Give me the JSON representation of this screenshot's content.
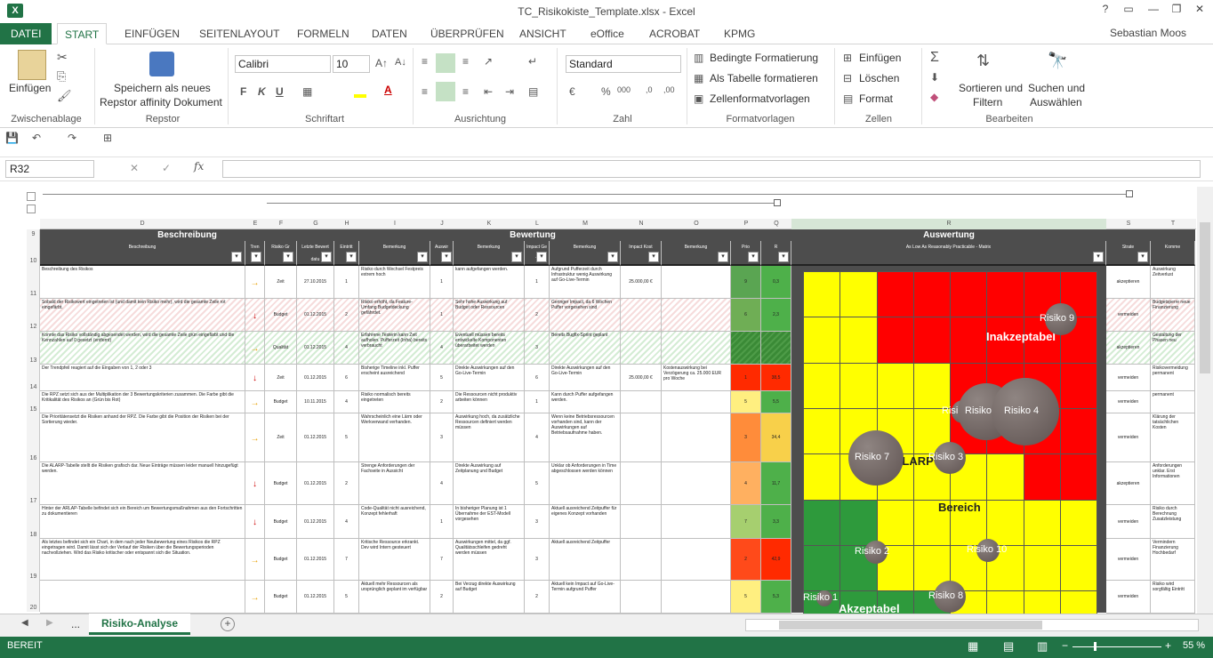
{
  "window": {
    "title": "TC_Risikokiste_Template.xlsx - Excel",
    "user": "Sebastian Moos"
  },
  "tabs": [
    "DATEI",
    "START",
    "EINFÜGEN",
    "SEITENLAYOUT",
    "FORMELN",
    "DATEN",
    "ÜBERPRÜFEN",
    "ANSICHT",
    "eOffice",
    "ACROBAT",
    "KPMG"
  ],
  "ribbon": {
    "paste": "Einfügen",
    "save_repstor": "Speichern als neues",
    "save_repstor2": "Repstor affinity Dokument",
    "font": "Calibri",
    "size": "10",
    "numfmt": "Standard",
    "cond": "Bedingte Formatierung",
    "astable": "Als Tabelle formatieren",
    "cellstyles": "Zellenformatvorlagen",
    "insert": "Einfügen",
    "delete": "Löschen",
    "format": "Format",
    "sort": "Sortieren und",
    "sort2": "Filtern",
    "find": "Suchen und",
    "find2": "Auswählen",
    "groups": [
      "Zwischenablage",
      "Repstor",
      "Schriftart",
      "Ausrichtung",
      "Zahl",
      "Formatvorlagen",
      "Zellen",
      "Bearbeiten"
    ]
  },
  "namebox": "R32",
  "columns": [
    "D",
    "E",
    "F",
    "G",
    "H",
    "I",
    "J",
    "K",
    "L",
    "M",
    "N",
    "O",
    "P",
    "Q",
    "R",
    "S",
    "T"
  ],
  "rows": [
    "9",
    "10",
    "11",
    "12",
    "13",
    "14",
    "15",
    "16",
    "17",
    "18",
    "19",
    "20"
  ],
  "header1": {
    "beschreibung": "Beschreibung",
    "bewertung": "Bewertung",
    "auswertung": "Auswertung"
  },
  "header2": {
    "beschreibung": "Beschreibung",
    "trend": "Tren",
    "risiko": "Risiko Gr",
    "letzte": "Letzte Bewert datu",
    "eintritt": "Eintritt",
    "bemerkung": "Bemerkung",
    "ausw": "Auswir",
    "impact": "Impact Ge T",
    "kosten": "Impact Kost",
    "prio": "Prio",
    "rpz": "R",
    "matrix": "As Low As Reasonably Practicable - Matrix",
    "strat": "Strate",
    "komm": "Komme"
  },
  "data": [
    {
      "desc": "Beschreibung des Risikos",
      "risiko": "Zeit",
      "date": "27.10.2015",
      "e": "1",
      "ebem": "Risiko durch Wechsel Festpreis extrem hoch",
      "a": "1",
      "abem": "kann aufgefangen werden.",
      "i": "1",
      "ibem": "Aufgrund Pufferzeit durch Infrastruktur wenig Auswirkung auf Go-Live-Termin",
      "k": "25.000,00 €",
      "kbem": "",
      "p": "9",
      "q": "0,3",
      "s": "akzeptieren",
      "t": "Auswirkung Zeitverlust"
    },
    {
      "desc": "Sobald der Risikowert eingetreten ist (und damit kein Risiko mehr), wird die gesamte Zeile rot eingefärbt.",
      "risiko": "Budget",
      "date": "01.12.2015",
      "e": "2",
      "ebem": "Risiko erhöht, da Feature-Umfang Budgetdeckung gefährdet.",
      "a": "1",
      "abem": "Sehr hohe Auswirkung auf Budget oder Ressourcen",
      "i": "2",
      "ibem": "Geringer Impact, da 6 Wochen Puffer vorgesehen sind",
      "k": "",
      "kbem": "",
      "p": "6",
      "q": "2,3",
      "s": "vermeiden",
      "t": "Budgetsperre neue Finanzierung"
    },
    {
      "desc": "Konnte das Risiko vollständig abgesendet werden, wird die gesamte Zeile grün eingefärbt und die Kennzahlen auf 0 gesetzt (entfernt)",
      "risiko": "Qualität",
      "date": "01.12.2015",
      "e": "4",
      "ebem": "Erfahrene Testerin kann Zeit aufholen. Pufferzeit (Infra) bereits verbraucht",
      "a": "4",
      "abem": "Eventuell müssen bereits entwickelte Komponenten überarbeitet werden",
      "i": "3",
      "ibem": "Bereits Bugfix-Sprint geplant",
      "k": "",
      "kbem": "",
      "p": "",
      "q": "",
      "s": "akzeptieren",
      "t": "Gestaltung der Phasen neu"
    },
    {
      "desc": "Der Trendpfeil reagiert auf die Eingaben von 1, 2 oder 3",
      "risiko": "Zeit",
      "date": "01.12.2015",
      "e": "6",
      "ebem": "Bisherige Timeline inkl. Puffer erscheint ausreichend",
      "a": "5",
      "abem": "Direkte Auswirkungen auf den Go-Live-Termin",
      "i": "6",
      "ibem": "Direkte Auswirkungen auf den Go-Live-Termin",
      "k": "25.000,00 €",
      "kbem": "Kostenauswirkung bei Verzögerung ca. 25.000 EUR pro Woche",
      "p": "1",
      "q": "38,5",
      "s": "vermeiden",
      "t": "Risikovermeidung permanent"
    },
    {
      "desc": "Die RPZ setzt sich aus der Multiplikation der 3 Bewertungskriterien zusammen. Die Farbe gibt die Kritikalität des Risikos an (Grün bis Rot)",
      "risiko": "Budget",
      "date": "10.11.2015",
      "e": "4",
      "ebem": "Risiko normalisch bereits eingetreten",
      "a": "2",
      "abem": "Die Ressourcen nicht produktiv arbeiten können",
      "i": "1",
      "ibem": "Kann durch Puffer aufgefangen werden.",
      "k": "",
      "kbem": "",
      "p": "5",
      "q": "5,5",
      "s": "vermeiden",
      "t": "permanent"
    },
    {
      "desc": "Die Prioritätensetzt die Risiken anhand der RPZ. Die Farbe gibt die Position der Risiken bei der Sortierung wieder.",
      "risiko": "Zeit",
      "date": "01.12.2015",
      "e": "5",
      "ebem": "Wahrscheinlich eine Lärm oder Werkverwand verhanden.",
      "a": "3",
      "abem": "Auswirkung hoch, da zusätzliche Ressourcen definiert werden müssen",
      "i": "4",
      "ibem": "Wenn keine Betriebsressourcen vorhanden sind, kann der Auswirkungen auf Betriebsaufnahme haben.",
      "k": "",
      "kbem": "",
      "p": "3",
      "q": "34,4",
      "s": "vermeiden",
      "t": "Klärung der tatsächlichen Kosten"
    },
    {
      "desc": "Die ALARP-Tabelle stellt die Risiken grafisch dar. Neue Einträge müssen leider manuell hinzugefügt werden.",
      "risiko": "Budget",
      "date": "01.12.2015",
      "e": "2",
      "ebem": "Strenge Anforderungen der Fachseite in Aussicht",
      "a": "4",
      "abem": "Direkte Auswirkung auf Zeitplanung und Budget",
      "i": "5",
      "ibem": "Unklar ob Anforderungen in Time abgeschlossen werden können",
      "k": "",
      "kbem": "",
      "p": "4",
      "q": "11,7",
      "s": "akzeptieren",
      "t": "Anforderungen unklar. Erst Informationen"
    },
    {
      "desc": "Hinter der ARLAP-Tabelle befindet sich ein Bereich um Bewertungsmaßnahmen aus den Fortschritten zu dokumentieren",
      "risiko": "Budget",
      "date": "01.12.2015",
      "e": "4",
      "ebem": "Code-Qualität nicht ausreichend, Konzept fehlerhaft",
      "a": "1",
      "abem": "In bisheriger Planung ist 1 Übernahme der EST-Modell vorgesehen",
      "i": "3",
      "ibem": "Aktuell ausreichend Zeitpuffer für eigenes Konzept vorhanden",
      "k": "",
      "kbem": "",
      "p": "7",
      "q": "3,3",
      "s": "vermeiden",
      "t": "Risiko durch Berechnung Zusatzleistung"
    },
    {
      "desc": "Als letztes befindet sich ein Chart, in dem nach jeder Neubewertung eines Risikos die RPZ eingetragen wird. Damit lässt sich der Verlauf der Risiken über die Bewertungsperioden nachvollziehen. Wird das Risiko kritischer oder entspannt sich die Situation.",
      "risiko": "Budget",
      "date": "01.12.2015",
      "e": "7",
      "ebem": "Kritische Ressource erkrankt. Dev wird Intern gesteuert",
      "a": "7",
      "abem": "Auswirkungen mittel, da ggf. Qualitätsschleifen gedreht werden müssen",
      "i": "3",
      "ibem": "Aktuell ausreichend Zeitpuffer",
      "k": "",
      "kbem": "",
      "p": "2",
      "q": "42,9",
      "s": "vermeiden",
      "t": "Vermindern Finanzierung Hochbedarf"
    },
    {
      "desc": "",
      "risiko": "Budget",
      "date": "01.12.2015",
      "e": "5",
      "ebem": "Aktuell mehr Ressourcen als ursprünglich geplant im verfügbar",
      "a": "2",
      "abem": "Bei Verzug direkte Auswirkung auf Budget",
      "i": "2",
      "ibem": "Aktuell kein Impact auf Go-Live-Termin aufgrund Puffer",
      "k": "",
      "kbem": "",
      "p": "5",
      "q": "5,3",
      "s": "vermeiden",
      "t": "Risiko wird sorgfältig Eintritt"
    }
  ],
  "matrix": {
    "zones": {
      "red": "Inakzeptabel",
      "yellow1": "ALARP",
      "yellow2": "Bereich",
      "green": "Akzeptabel"
    },
    "bubbles": [
      "Risiko 9",
      "Risiko 5",
      "Risiko 6",
      "Risiko 4",
      "Risiko 7",
      "Risiko 3",
      "Risiko 2",
      "Risiko 10",
      "Risiko 1",
      "Risiko 8"
    ]
  },
  "sheet": {
    "tab": "Risiko-Analyse",
    "ellipsis": "..."
  },
  "status": {
    "ready": "BEREIT",
    "zoom": "55 %"
  },
  "colors": {
    "excel_green": "#217346",
    "red": "#ff0000",
    "yellow": "#ffff00",
    "green": "#2e9a3c"
  }
}
